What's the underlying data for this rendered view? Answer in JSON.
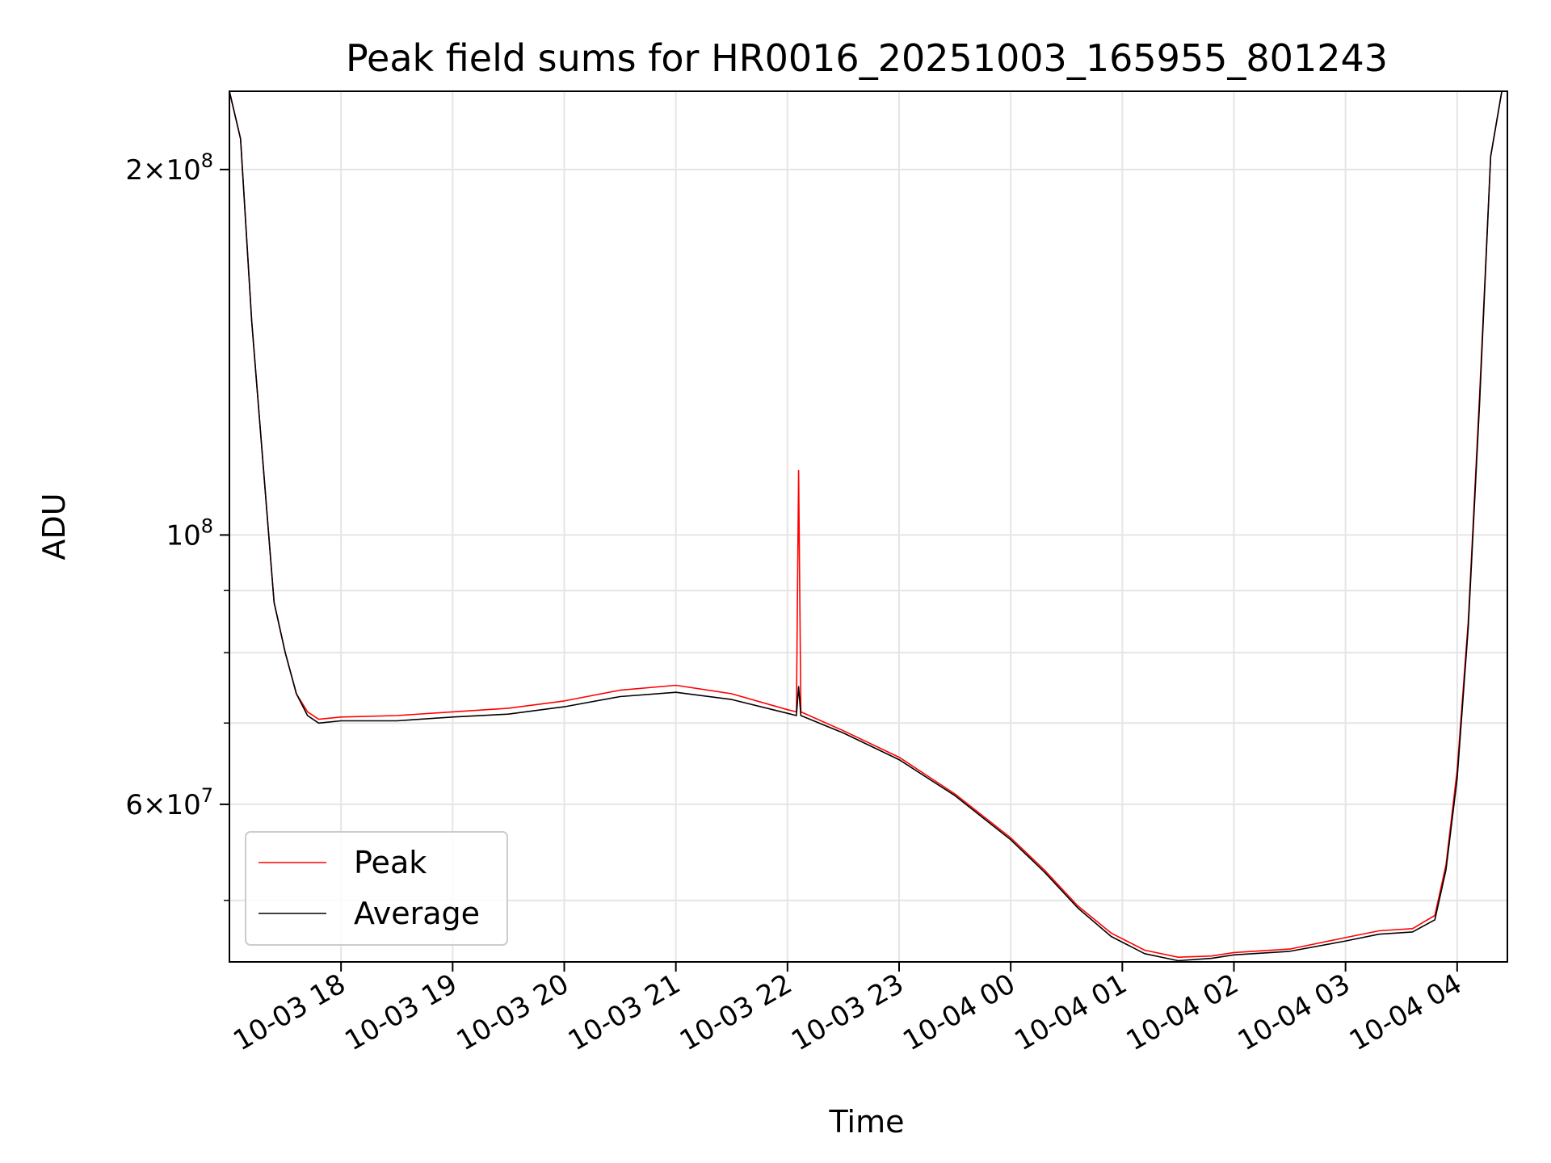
{
  "chart_data": {
    "type": "line",
    "title": "Peak field sums for HR0016_20251003_165955_801243",
    "xlabel": "Time",
    "ylabel": "ADU",
    "yscale": "log",
    "xlim": [
      17.0,
      28.45
    ],
    "ylim": [
      44500000,
      232000000
    ],
    "grid": true,
    "legend_position": "lower-left",
    "x_tick_values": [
      18,
      19,
      20,
      21,
      22,
      23,
      24,
      25,
      26,
      27,
      28
    ],
    "x_tick_labels": [
      "10-03 18",
      "10-03 19",
      "10-03 20",
      "10-03 21",
      "10-03 22",
      "10-03 23",
      "10-04 00",
      "10-04 01",
      "10-04 02",
      "10-04 03",
      "10-04 04"
    ],
    "y_major_ticks": [
      {
        "value": 200000000,
        "mantissa": "2",
        "exponent": "8"
      },
      {
        "value": 100000000,
        "mantissa": "",
        "exponent": "8"
      },
      {
        "value": 60000000,
        "mantissa": "6",
        "exponent": "7"
      }
    ],
    "y_minor_ticks": [
      50000000,
      70000000,
      80000000,
      90000000
    ],
    "series": [
      {
        "name": "Peak",
        "color": "#ff0000",
        "x": [
          17.0,
          17.1,
          17.2,
          17.3,
          17.4,
          17.5,
          17.6,
          17.7,
          17.8,
          18.0,
          18.5,
          19.0,
          19.5,
          20.0,
          20.5,
          21.0,
          21.5,
          22.0,
          22.08,
          22.1,
          22.12,
          22.5,
          23.0,
          23.5,
          24.0,
          24.3,
          24.6,
          24.9,
          25.2,
          25.5,
          25.8,
          26.0,
          26.5,
          27.0,
          27.3,
          27.6,
          27.8,
          27.9,
          28.0,
          28.1,
          28.2,
          28.3,
          28.4,
          28.45
        ],
        "y": [
          232000000,
          212000000,
          150000000,
          115000000,
          88000000,
          80000000,
          74000000,
          71500000,
          70500000,
          70800000,
          71000000,
          71500000,
          72000000,
          73000000,
          74500000,
          75200000,
          74000000,
          71800000,
          71500000,
          113000000,
          71500000,
          69000000,
          65600000,
          61200000,
          56300000,
          53000000,
          49500000,
          47000000,
          45500000,
          44900000,
          45000000,
          45300000,
          45600000,
          46600000,
          47200000,
          47400000,
          48600000,
          53500000,
          64000000,
          85000000,
          130000000,
          205000000,
          232000000,
          232000000
        ]
      },
      {
        "name": "Average",
        "color": "#000000",
        "x": [
          17.0,
          17.1,
          17.2,
          17.3,
          17.4,
          17.5,
          17.6,
          17.7,
          17.8,
          18.0,
          18.5,
          19.0,
          19.5,
          20.0,
          20.5,
          21.0,
          21.5,
          22.0,
          22.08,
          22.1,
          22.12,
          22.5,
          23.0,
          23.5,
          24.0,
          24.3,
          24.6,
          24.9,
          25.2,
          25.5,
          25.8,
          26.0,
          26.5,
          27.0,
          27.3,
          27.6,
          27.8,
          27.9,
          28.0,
          28.1,
          28.2,
          28.3,
          28.4,
          28.45
        ],
        "y": [
          232000000,
          212000000,
          150000000,
          115000000,
          88000000,
          80000000,
          74000000,
          71000000,
          70000000,
          70300000,
          70300000,
          70800000,
          71200000,
          72200000,
          73600000,
          74200000,
          73200000,
          71300000,
          71000000,
          75000000,
          71000000,
          68700000,
          65300000,
          61000000,
          56100000,
          52800000,
          49300000,
          46700000,
          45200000,
          44600000,
          44800000,
          45100000,
          45400000,
          46300000,
          46900000,
          47100000,
          48200000,
          53000000,
          63000000,
          84000000,
          128000000,
          205000000,
          232000000,
          232000000
        ]
      }
    ]
  }
}
